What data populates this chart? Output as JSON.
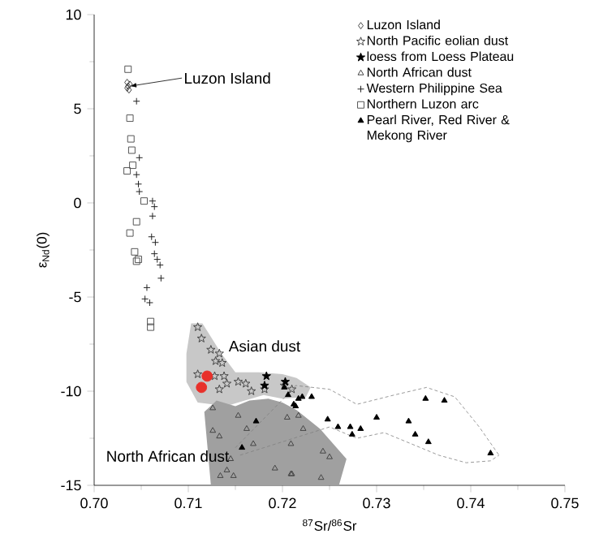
{
  "chart_data": {
    "type": "scatter",
    "xlabel": "$^{87}$Sr/$^{86}$Sr",
    "ylabel": "ε$_{Nd}$(0)",
    "xlim": [
      0.7,
      0.75
    ],
    "ylim": [
      -15,
      10
    ],
    "xticks": [
      {
        "value": 0.7,
        "label": "0.70"
      },
      0.71,
      0.72,
      0.73,
      0.74,
      0.75
    ],
    "yticks": [
      -15,
      -10,
      -5,
      0,
      5,
      10
    ],
    "grid": false,
    "legend": "top right",
    "annotations": [
      {
        "text": "Luzon Island",
        "x": 0.7038,
        "y": 6.2
      },
      "Asian dust",
      "North African dust"
    ],
    "series": [
      {
        "type": "area",
        "color": "#c8c8c8",
        "x": [
          0.7103,
          0.7115,
          0.7135,
          0.715,
          0.7175,
          0.72,
          0.7215,
          0.723,
          0.7225,
          0.72,
          0.718,
          0.716,
          0.714,
          0.711,
          0.7098,
          0.7098
        ],
        "values": [
          -6.4,
          -6.4,
          -8.0,
          -9.0,
          -9.0,
          -9.1,
          -9.3,
          -9.8,
          -10.3,
          -10.4,
          -10.2,
          -10.5,
          -10.8,
          -10.6,
          -9.5,
          -8.0
        ]
      },
      {
        "type": "area",
        "color": "#a0a0a0",
        "x": [
          0.7117,
          0.713,
          0.715,
          0.7165,
          0.7185,
          0.72,
          0.7215,
          0.724,
          0.7268,
          0.726,
          0.7124
        ],
        "values": [
          -11.1,
          -10.5,
          -10.8,
          -10.5,
          -10.4,
          -10.6,
          -11.0,
          -12.0,
          -13.6,
          -15,
          -15
        ]
      },
      {
        "type": "line",
        "line_style": "dashed",
        "color": "#808080",
        "x": [
          0.715,
          0.7205,
          0.7214,
          0.725,
          0.7279,
          0.7319,
          0.7353,
          0.7383,
          0.7409,
          0.743
        ],
        "values": [
          -13.0,
          -10.2,
          -9.7,
          -9.9,
          -10.7,
          -10.2,
          -9.8,
          -10.3,
          -11.9,
          -13.4
        ]
      },
      {
        "type": "line",
        "line_style": "dashed",
        "color": "#808080",
        "x": [
          0.7155,
          0.725,
          0.7279,
          0.7308,
          0.7337,
          0.7366,
          0.7395,
          0.7421,
          0.743
        ],
        "values": [
          -13.4,
          -11.9,
          -12.5,
          -12.2,
          -12.8,
          -13.4,
          -13.8,
          -13.7,
          -13.4
        ]
      },
      {
        "name": "Luzon Island",
        "marker": "diamond",
        "color": "#444444",
        "x": [
          0.7035,
          0.7036,
          0.7037,
          0.7035,
          0.7038
        ],
        "values": [
          6.4,
          6.2,
          6.0,
          6.1,
          6.3
        ]
      },
      {
        "name": "North Pacific eolian dust",
        "marker": "star",
        "color": "#444444",
        "x": [
          0.711,
          0.7114,
          0.7124,
          0.7133,
          0.7129,
          0.7136,
          0.711,
          0.7128,
          0.7138,
          0.7133,
          0.7141,
          0.7153,
          0.7161,
          0.7167,
          0.7181,
          0.7202,
          0.721
        ],
        "values": [
          -6.6,
          -7.2,
          -7.8,
          -8.0,
          -8.4,
          -8.5,
          -9.1,
          -9.2,
          -9.2,
          -9.9,
          -9.6,
          -9.5,
          -9.6,
          -10.0,
          -9.9,
          -9.7,
          -9.9
        ]
      },
      {
        "name": "loess from Loess Plateau",
        "marker": "star",
        "color": "#000000",
        "x": [
          0.7183,
          0.7181,
          0.7203
        ],
        "values": [
          -9.2,
          -9.7,
          -9.5
        ]
      },
      {
        "name": "North African dust",
        "marker": "triangle",
        "color": "#444444",
        "x": [
          0.7126,
          0.7153,
          0.7126,
          0.7133,
          0.7169,
          0.7162,
          0.7145,
          0.7141,
          0.7134,
          0.7148,
          0.7192,
          0.7209,
          0.7209,
          0.7205,
          0.7217,
          0.7222,
          0.7243,
          0.725,
          0.721,
          0.7241
        ],
        "values": [
          -10.9,
          -11.3,
          -12.1,
          -12.4,
          -12.8,
          -12.0,
          -13.6,
          -14.2,
          -14.5,
          -14.5,
          -14.1,
          -12.8,
          -14.4,
          -11.4,
          -11.3,
          -12.0,
          -13.2,
          -13.5,
          -14.4,
          -14.6
        ]
      },
      {
        "name": "Western Philippine Sea",
        "marker": "cross",
        "color": "#222222",
        "x": [
          0.7045,
          0.7048,
          0.7045,
          0.7047,
          0.7048,
          0.7062,
          0.7064,
          0.7062,
          0.7061,
          0.7065,
          0.7064,
          0.7067,
          0.707,
          0.7071,
          0.7056,
          0.7054,
          0.7059
        ],
        "values": [
          5.4,
          2.4,
          1.5,
          1.0,
          0.6,
          0.1,
          -0.2,
          -0.7,
          -1.8,
          -2.1,
          -2.7,
          -3.0,
          -3.3,
          -4.0,
          -4.5,
          -5.1,
          -5.3
        ]
      },
      {
        "name": "Northern Luzon arc",
        "marker": "square",
        "color": "#555555",
        "x": [
          0.7036,
          0.7038,
          0.7039,
          0.704,
          0.7041,
          0.7035,
          0.7053,
          0.7045,
          0.7038,
          0.7043,
          0.7047,
          0.7045,
          0.706,
          0.706
        ],
        "values": [
          7.1,
          4.5,
          3.4,
          2.8,
          2.0,
          1.7,
          0.1,
          -1.0,
          -1.6,
          -2.6,
          -3.0,
          -3.1,
          -6.3,
          -6.6
        ]
      },
      {
        "name": "Pearl River, Red River & Mekong River",
        "marker": "triangle",
        "color": "#000000",
        "x": [
          0.7172,
          0.7157,
          0.7202,
          0.7206,
          0.7212,
          0.7214,
          0.7217,
          0.7221,
          0.7231,
          0.7248,
          0.7259,
          0.7272,
          0.7274,
          0.7283,
          0.73,
          0.7334,
          0.7341,
          0.7355,
          0.7352,
          0.7372,
          0.7421
        ],
        "values": [
          -11.6,
          -13.0,
          -9.8,
          -10.2,
          -10.7,
          -10.8,
          -10.4,
          -10.3,
          -10.3,
          -11.5,
          -11.9,
          -11.9,
          -12.3,
          -12.0,
          -11.4,
          -11.6,
          -12.3,
          -12.7,
          -10.4,
          -10.5,
          -13.3
        ]
      },
      {
        "marker": "circle",
        "color": "#e8302a",
        "x": [
          0.712,
          0.7114
        ],
        "values": [
          -9.2,
          -9.8
        ]
      }
    ]
  }
}
